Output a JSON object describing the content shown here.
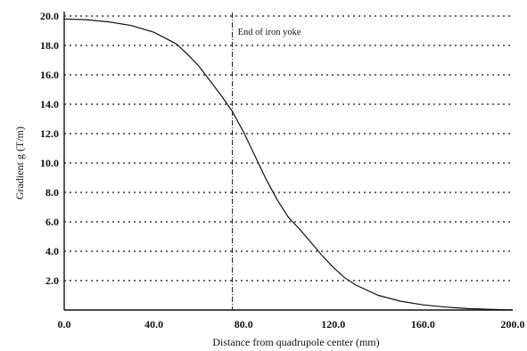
{
  "chart_data": {
    "type": "line",
    "title": "",
    "xlabel": "Distance from quadrupole center (mm)",
    "ylabel": "Gradient g (T/m)",
    "xlim": [
      0,
      200
    ],
    "ylim": [
      0,
      20
    ],
    "x_ticks": [
      "0.0",
      "40.0",
      "80.0",
      "120.0",
      "160.0",
      "200.0"
    ],
    "y_ticks": [
      "2.0",
      "4.0",
      "6.0",
      "8.0",
      "10.0",
      "12.0",
      "14.0",
      "16.0",
      "18.0",
      "20.0"
    ],
    "grid": "horizontal dotted",
    "annotation": {
      "text": "End of iron yoke",
      "x": 75
    },
    "series": [
      {
        "x": [
          0,
          10,
          20,
          30,
          40,
          50,
          55,
          60,
          65,
          70,
          75,
          80,
          85,
          90,
          95,
          100,
          105,
          110,
          115,
          120,
          125,
          130,
          140,
          150,
          160,
          170,
          180,
          190,
          200
        ],
        "y": [
          19.8,
          19.75,
          19.6,
          19.35,
          18.9,
          18.1,
          17.4,
          16.6,
          15.6,
          14.6,
          13.5,
          12.1,
          10.5,
          8.9,
          7.5,
          6.3,
          5.5,
          4.6,
          3.7,
          2.9,
          2.2,
          1.7,
          1.0,
          0.6,
          0.35,
          0.2,
          0.1,
          0.05,
          0.0
        ]
      }
    ]
  }
}
